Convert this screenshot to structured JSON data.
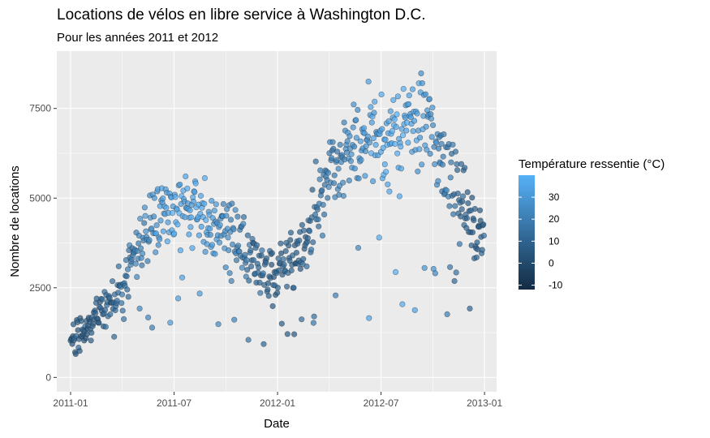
{
  "chart_data": {
    "type": "scatter",
    "title": "Locations de vélos en libre service à Washington D.C.",
    "subtitle": "Pour les années 2011 et 2012",
    "xlabel": "Date",
    "ylabel": "Nombre de locations",
    "x_ticks": [
      {
        "label": "2011-01",
        "month": 0
      },
      {
        "label": "2011-07",
        "month": 6
      },
      {
        "label": "2012-01",
        "month": 12
      },
      {
        "label": "2012-07",
        "month": 18
      },
      {
        "label": "2013-01",
        "month": 24
      }
    ],
    "y_ticks": [
      0,
      2500,
      5000,
      7500
    ],
    "ylim": [
      -400,
      9100
    ],
    "xlim_months": [
      -0.8,
      24.7
    ],
    "grid": true,
    "legend": {
      "title": "Température ressentie (°C)",
      "placement": "right",
      "ticks": [
        -10,
        0,
        10,
        20,
        30
      ],
      "range": [
        -12,
        40
      ],
      "color_low": "#132b43",
      "color_high": "#56b1f7"
    },
    "monthly_summary": [
      {
        "month": 0.5,
        "mean_rentals": 1230,
        "feels_like_c": 6
      },
      {
        "month": 1.5,
        "mean_rentals": 1720,
        "feels_like_c": 9
      },
      {
        "month": 2.5,
        "mean_rentals": 2070,
        "feels_like_c": 13
      },
      {
        "month": 3.5,
        "mean_rentals": 3160,
        "feels_like_c": 19
      },
      {
        "month": 4.5,
        "mean_rentals": 4380,
        "feels_like_c": 26
      },
      {
        "month": 5.5,
        "mean_rentals": 4780,
        "feels_like_c": 32
      },
      {
        "month": 6.5,
        "mean_rentals": 4560,
        "feels_like_c": 36
      },
      {
        "month": 7.5,
        "mean_rentals": 4410,
        "feels_like_c": 34
      },
      {
        "month": 8.5,
        "mean_rentals": 4250,
        "feels_like_c": 29
      },
      {
        "month": 9.5,
        "mean_rentals": 3980,
        "feels_like_c": 22
      },
      {
        "month": 10.5,
        "mean_rentals": 3410,
        "feels_like_c": 14
      },
      {
        "month": 11.5,
        "mean_rentals": 2820,
        "feels_like_c": 10
      },
      {
        "month": 12.5,
        "mean_rentals": 3120,
        "feels_like_c": 8
      },
      {
        "month": 13.5,
        "mean_rentals": 3560,
        "feels_like_c": 11
      },
      {
        "month": 14.5,
        "mean_rentals": 5320,
        "feels_like_c": 18
      },
      {
        "month": 15.5,
        "mean_rentals": 5810,
        "feels_like_c": 21
      },
      {
        "month": 16.5,
        "mean_rentals": 6320,
        "feels_like_c": 27
      },
      {
        "month": 17.5,
        "mean_rentals": 6760,
        "feels_like_c": 33
      },
      {
        "month": 18.5,
        "mean_rentals": 6570,
        "feels_like_c": 37
      },
      {
        "month": 19.5,
        "mean_rentals": 6920,
        "feels_like_c": 35
      },
      {
        "month": 20.5,
        "mean_rentals": 7290,
        "feels_like_c": 30
      },
      {
        "month": 21.5,
        "mean_rentals": 6410,
        "feels_like_c": 22
      },
      {
        "month": 22.5,
        "mean_rentals": 5090,
        "feels_like_c": 13
      },
      {
        "month": 23.5,
        "mean_rentals": 3990,
        "feels_like_c": 10
      }
    ]
  }
}
